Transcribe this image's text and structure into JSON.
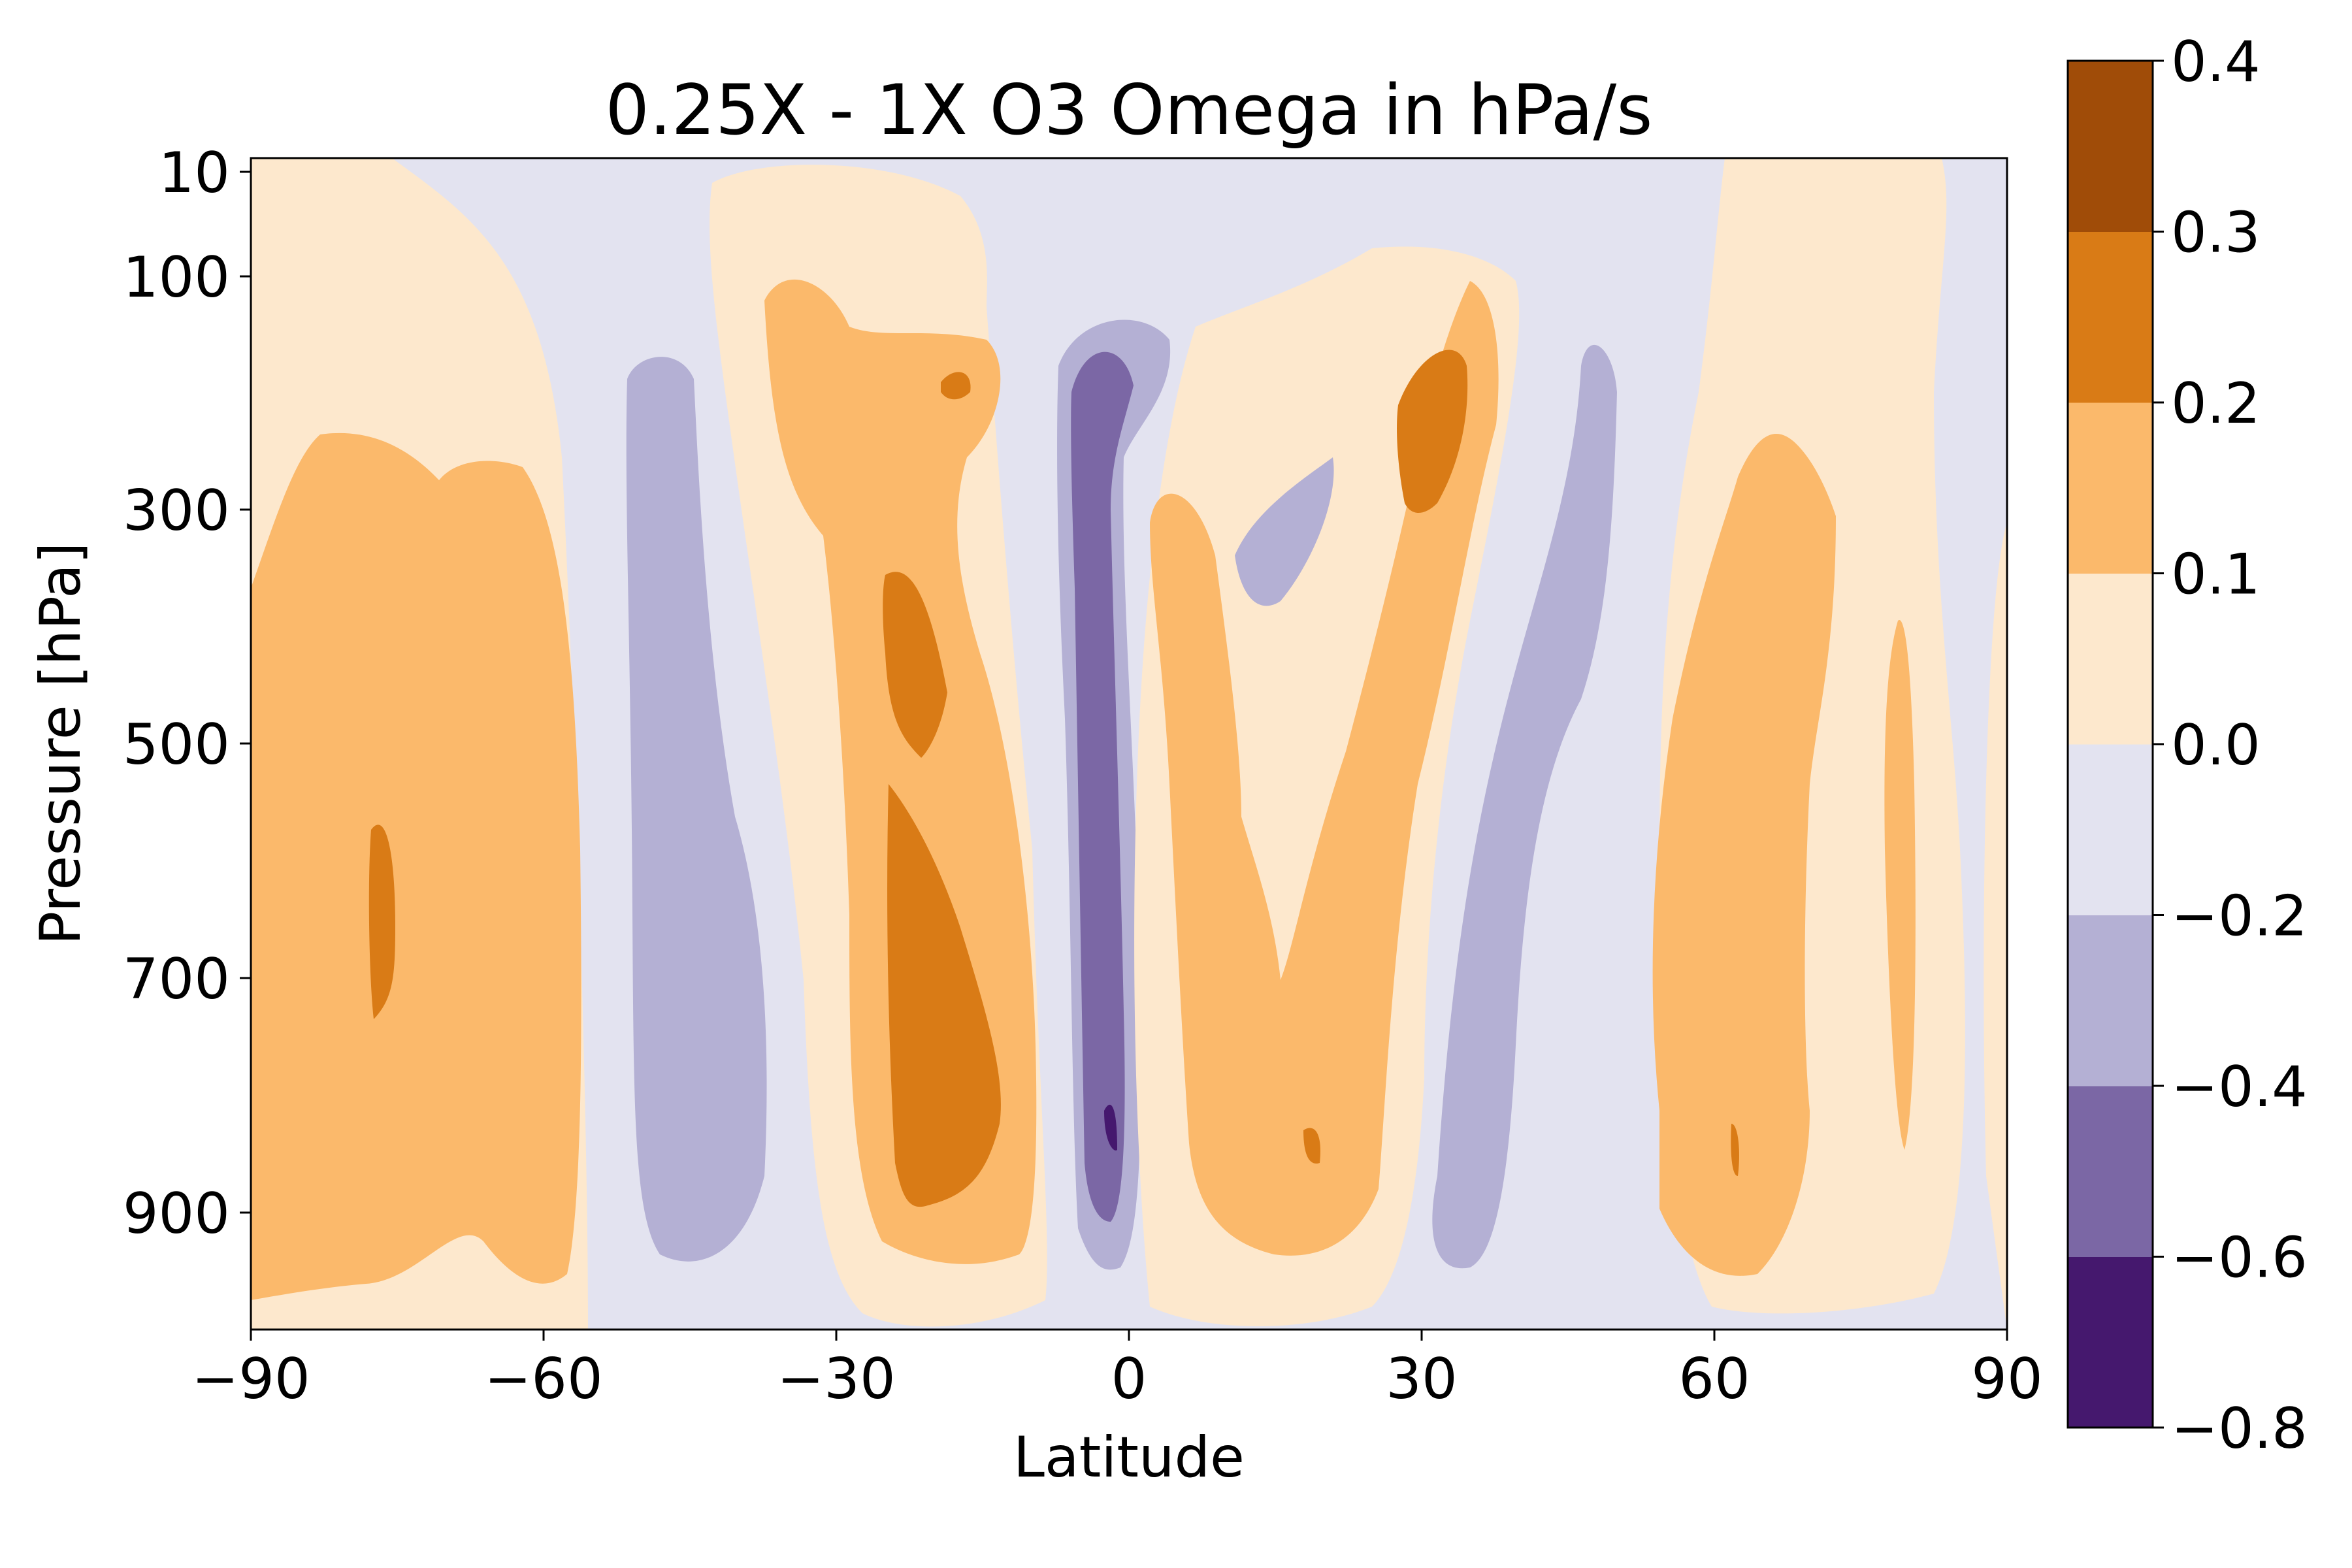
{
  "chart_data": {
    "type": "heatmap",
    "title": "0.25X - 1X O3 Omega in hPa/s",
    "xlabel": "Latitude",
    "ylabel": "Pressure [hPa]",
    "xlim": [
      -90,
      90
    ],
    "ylim": [
      10,
      1000
    ],
    "x_ticks": [
      -90,
      -60,
      -30,
      0,
      30,
      60,
      90
    ],
    "x_tick_labels": [
      "−90",
      "−60",
      "−30",
      "0",
      "30",
      "60",
      "90"
    ],
    "y_ticks": [
      10,
      100,
      300,
      500,
      700,
      900
    ],
    "y_tick_labels": [
      "10",
      "100",
      "300",
      "500",
      "700",
      "900"
    ],
    "colorbar": {
      "levels": [
        -0.8,
        -0.6,
        -0.4,
        -0.2,
        0.0,
        0.1,
        0.2,
        0.3,
        0.4
      ],
      "tick_labels": [
        "−0.8",
        "−0.6",
        "−0.4",
        "−0.2",
        "0.0",
        "0.1",
        "0.2",
        "0.3",
        "0.4"
      ],
      "colors": [
        "#45186e",
        "#7b67a5",
        "#b4b0d4",
        "#e3e3f0",
        "#fde8cd",
        "#fbb96b",
        "#d97b16",
        "#a04c08"
      ]
    },
    "regions": [
      {
        "band": "0.0 to 0.1",
        "lat": [
          -90,
          -50
        ]
      },
      {
        "band": "0.1 to 0.2",
        "lat": [
          -90,
          -60
        ],
        "pressure": [
          250,
          980
        ]
      },
      {
        "band": "0.2 to 0.3",
        "lat": [
          -78,
          -74
        ],
        "pressure": [
          570,
          730
        ]
      },
      {
        "band": "-0.4 to -0.2",
        "lat": [
          -49,
          -40
        ],
        "pressure": [
          170,
          950
        ]
      },
      {
        "band": "0.0 to 0.1",
        "lat": [
          -43,
          -8
        ],
        "pressure": [
          30,
          1000
        ]
      },
      {
        "band": "0.1 to 0.2",
        "lat": [
          -37,
          -15
        ],
        "pressure": [
          100,
          930
        ]
      },
      {
        "band": "0.2 to 0.3",
        "lat": [
          -24,
          -13
        ],
        "pressure": [
          380,
          900
        ]
      },
      {
        "band": "0.2 to 0.3",
        "lat": [
          -19,
          -16
        ],
        "pressure": [
          190,
          220
        ]
      },
      {
        "band": "-0.4 to -0.2",
        "lat": [
          -7,
          4
        ],
        "pressure": [
          140,
          970
        ]
      },
      {
        "band": "-0.6 to -0.4",
        "lat": [
          -6,
          0
        ],
        "pressure": [
          160,
          930
        ]
      },
      {
        "band": "-0.8 to -0.6",
        "lat": [
          -3,
          -1
        ],
        "pressure": [
          820,
          870
        ]
      },
      {
        "band": "0.0 to 0.1",
        "lat": [
          0,
          45
        ],
        "pressure": [
          100,
          1000
        ]
      },
      {
        "band": "0.1 to 0.2",
        "lat": [
          1,
          38
        ],
        "pressure": [
          100,
          960
        ]
      },
      {
        "band": "0.2 to 0.3",
        "lat": [
          27,
          35
        ],
        "pressure": [
          160,
          310
        ]
      },
      {
        "band": "0.2 to 0.3",
        "lat": [
          18,
          20
        ],
        "pressure": [
          840,
          870
        ]
      },
      {
        "band": "-0.4 to -0.2",
        "lat": [
          34,
          47
        ],
        "pressure": [
          170,
          960
        ]
      },
      {
        "band": "0.0 to 0.1",
        "lat": [
          50,
          90
        ],
        "pressure": [
          10,
          1000
        ]
      },
      {
        "band": "0.1 to 0.2",
        "lat": [
          53,
          72
        ],
        "pressure": [
          280,
          980
        ]
      },
      {
        "band": "0.2 to 0.3",
        "lat": [
          61,
          62
        ],
        "pressure": [
          830,
          880
        ]
      },
      {
        "band": "0.1 to 0.2",
        "lat": [
          77,
          80
        ],
        "pressure": [
          400,
          850
        ]
      }
    ]
  }
}
